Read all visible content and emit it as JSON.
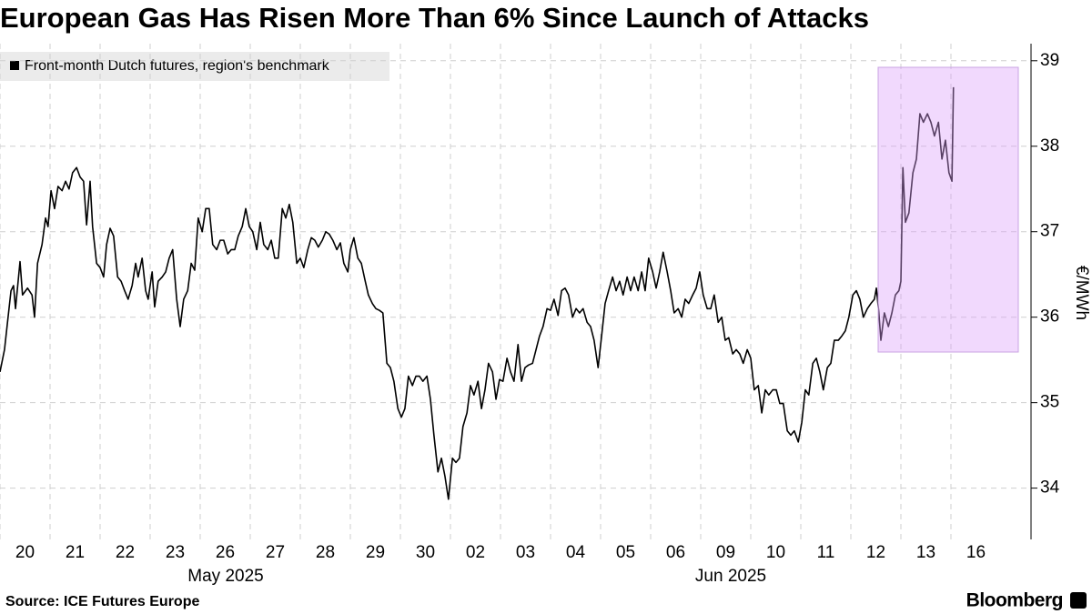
{
  "chart_data": {
    "type": "line",
    "title": "European Gas Has Risen More Than 6% Since Launch of Attacks",
    "y_axis_label": "€/MWh",
    "month_labels": [
      "May 2025",
      "Jun 2025"
    ],
    "source": "Source: ICE Futures Europe",
    "brand": "Bloomberg",
    "xlim": [
      0,
      20.6
    ],
    "xticks": [
      {
        "value": 0,
        "label": "20"
      },
      {
        "value": 1,
        "label": "21"
      },
      {
        "value": 2,
        "label": "22"
      },
      {
        "value": 3,
        "label": "23"
      },
      {
        "value": 4,
        "label": "26"
      },
      {
        "value": 5,
        "label": "27"
      },
      {
        "value": 6,
        "label": "28"
      },
      {
        "value": 7,
        "label": "29"
      },
      {
        "value": 8,
        "label": "30"
      },
      {
        "value": 9,
        "label": "02"
      },
      {
        "value": 10,
        "label": "03"
      },
      {
        "value": 11,
        "label": "04"
      },
      {
        "value": 12,
        "label": "05"
      },
      {
        "value": 13,
        "label": "06"
      },
      {
        "value": 14,
        "label": "09"
      },
      {
        "value": 15,
        "label": "10"
      },
      {
        "value": 16,
        "label": "11"
      },
      {
        "value": 17,
        "label": "12"
      },
      {
        "value": 18,
        "label": "13"
      },
      {
        "value": 19,
        "label": "16"
      }
    ],
    "ylim": [
      33.4,
      39.2
    ],
    "yticks": [
      34,
      35,
      36,
      37,
      38,
      39
    ],
    "grid": true,
    "x": [
      0,
      0.09,
      0.15,
      0.22,
      0.27,
      0.31,
      0.4,
      0.45,
      0.55,
      0.64,
      0.69,
      0.75,
      0.84,
      0.91,
      0.96,
      1.02,
      1.09,
      1.16,
      1.24,
      1.31,
      1.38,
      1.45,
      1.53,
      1.6,
      1.67,
      1.73,
      1.8,
      1.85,
      1.93,
      2.0,
      2.07,
      2.13,
      2.2,
      2.27,
      2.35,
      2.42,
      2.49,
      2.56,
      2.64,
      2.71,
      2.76,
      2.84,
      2.91,
      2.96,
      3.04,
      3.09,
      3.16,
      3.24,
      3.31,
      3.38,
      3.45,
      3.53,
      3.6,
      3.67,
      3.75,
      3.82,
      3.89,
      3.96,
      4.04,
      4.11,
      4.18,
      4.25,
      4.33,
      4.4,
      4.47,
      4.55,
      4.62,
      4.69,
      4.76,
      4.84,
      4.91,
      4.98,
      5.05,
      5.13,
      5.2,
      5.27,
      5.35,
      5.42,
      5.49,
      5.56,
      5.64,
      5.71,
      5.78,
      5.85,
      5.93,
      6.0,
      6.07,
      6.15,
      6.22,
      6.29,
      6.36,
      6.44,
      6.51,
      6.58,
      6.65,
      6.73,
      6.8,
      6.87,
      6.95,
      7.0,
      7.07,
      7.15,
      7.22,
      7.29,
      7.36,
      7.44,
      7.51,
      7.58,
      7.65,
      7.73,
      7.8,
      7.87,
      7.95,
      8.02,
      8.09,
      8.16,
      8.24,
      8.31,
      8.38,
      8.45,
      8.53,
      8.6,
      8.67,
      8.75,
      8.82,
      8.89,
      8.96,
      9.04,
      9.11,
      9.18,
      9.25,
      9.33,
      9.4,
      9.47,
      9.55,
      9.62,
      9.69,
      9.76,
      9.84,
      9.91,
      9.98,
      10.05,
      10.13,
      10.2,
      10.27,
      10.35,
      10.42,
      10.49,
      10.56,
      10.64,
      10.71,
      10.78,
      10.85,
      10.93,
      11.0,
      11.07,
      11.15,
      11.22,
      11.29,
      11.36,
      11.44,
      11.51,
      11.58,
      11.65,
      11.73,
      11.8,
      11.87,
      11.95,
      12.02,
      12.09,
      12.16,
      12.24,
      12.31,
      12.38,
      12.45,
      12.53,
      12.6,
      12.67,
      12.75,
      12.82,
      12.89,
      12.96,
      13.04,
      13.11,
      13.18,
      13.25,
      13.33,
      13.4,
      13.47,
      13.55,
      13.62,
      13.69,
      13.76,
      13.84,
      13.91,
      13.98,
      14.05,
      14.13,
      14.2,
      14.27,
      14.35,
      14.42,
      14.49,
      14.56,
      14.64,
      14.71,
      14.78,
      14.85,
      14.93,
      15.0,
      15.07,
      15.15,
      15.22,
      15.29,
      15.36,
      15.44,
      15.51,
      15.58,
      15.65,
      15.73,
      15.8,
      15.87,
      15.95,
      16.02,
      16.09,
      16.16,
      16.24,
      16.31,
      16.38,
      16.45,
      16.53,
      16.6,
      16.67,
      16.75,
      16.82,
      16.89,
      16.96,
      17.04,
      17.11,
      17.18,
      17.25,
      17.33,
      17.4,
      17.47,
      17.51,
      17.56,
      17.6,
      17.67,
      17.75,
      17.82,
      17.89,
      17.96,
      18.0,
      18.04,
      18.09,
      18.16,
      18.24,
      18.31,
      18.38,
      18.45,
      18.53,
      18.6,
      18.67,
      18.75,
      18.82,
      18.89,
      18.96,
      19.02,
      19.05
    ],
    "series": [
      {
        "name": "Front-month Dutch futures, region's benchmark",
        "color": "#000000",
        "values": [
          35.36,
          35.62,
          35.94,
          36.31,
          36.37,
          36.1,
          36.65,
          36.26,
          36.34,
          36.26,
          36.0,
          36.63,
          36.85,
          37.16,
          37.06,
          37.48,
          37.27,
          37.53,
          37.48,
          37.59,
          37.5,
          37.69,
          37.75,
          37.64,
          37.59,
          37.08,
          37.59,
          37.06,
          36.63,
          36.58,
          36.47,
          36.85,
          37.04,
          36.95,
          36.47,
          36.42,
          36.31,
          36.21,
          36.37,
          36.63,
          36.47,
          36.69,
          36.31,
          36.21,
          36.53,
          36.12,
          36.42,
          36.47,
          36.53,
          36.69,
          36.79,
          36.21,
          35.89,
          36.21,
          36.31,
          36.63,
          36.55,
          37.16,
          37.0,
          37.27,
          37.27,
          36.85,
          36.79,
          36.9,
          36.9,
          36.74,
          36.79,
          36.79,
          36.95,
          37.06,
          37.27,
          37.06,
          37.0,
          36.79,
          37.11,
          36.85,
          36.79,
          36.9,
          36.69,
          36.69,
          37.27,
          37.16,
          37.32,
          37.11,
          36.63,
          36.69,
          36.58,
          36.79,
          36.93,
          36.9,
          36.82,
          36.9,
          37.0,
          36.97,
          36.9,
          36.79,
          36.87,
          36.63,
          36.53,
          36.79,
          36.93,
          36.69,
          36.63,
          36.44,
          36.26,
          36.16,
          36.1,
          36.08,
          36.05,
          35.46,
          35.41,
          35.25,
          34.93,
          34.83,
          34.93,
          35.31,
          35.2,
          35.31,
          35.31,
          35.25,
          35.31,
          35.04,
          34.62,
          34.19,
          34.35,
          34.14,
          33.87,
          34.35,
          34.3,
          34.35,
          34.72,
          34.88,
          35.2,
          35.09,
          35.25,
          34.93,
          35.15,
          35.46,
          35.36,
          35.04,
          35.27,
          35.25,
          35.52,
          35.36,
          35.25,
          35.68,
          35.25,
          35.41,
          35.44,
          35.46,
          35.62,
          35.78,
          35.89,
          36.1,
          36.08,
          36.21,
          36.02,
          36.31,
          36.34,
          36.26,
          36.0,
          36.1,
          36.05,
          36.1,
          35.94,
          35.89,
          35.73,
          35.41,
          35.78,
          36.16,
          36.31,
          36.47,
          36.31,
          36.42,
          36.26,
          36.47,
          36.31,
          36.47,
          36.31,
          36.53,
          36.31,
          36.69,
          36.53,
          36.34,
          36.53,
          36.76,
          36.53,
          36.31,
          36.05,
          36.1,
          36.0,
          36.21,
          36.16,
          36.26,
          36.34,
          36.53,
          36.26,
          36.1,
          36.1,
          36.26,
          35.94,
          36.0,
          35.73,
          35.76,
          35.57,
          35.62,
          35.57,
          35.46,
          35.62,
          35.52,
          35.15,
          35.2,
          34.88,
          35.15,
          35.09,
          35.15,
          35.15,
          34.99,
          34.99,
          34.67,
          34.62,
          34.67,
          34.54,
          34.77,
          35.15,
          35.09,
          35.46,
          35.52,
          35.36,
          35.15,
          35.41,
          35.46,
          35.73,
          35.73,
          35.78,
          35.84,
          36.0,
          36.26,
          36.31,
          36.21,
          36.0,
          36.1,
          36.16,
          36.21,
          36.34,
          36.05,
          35.73,
          36.05,
          35.89,
          36.05,
          36.26,
          36.31,
          36.42,
          37.75,
          37.11,
          37.22,
          37.69,
          37.85,
          38.38,
          38.28,
          38.38,
          38.28,
          38.12,
          38.28,
          37.85,
          38.07,
          37.69,
          37.59,
          38.69
        ]
      }
    ]
  }
}
